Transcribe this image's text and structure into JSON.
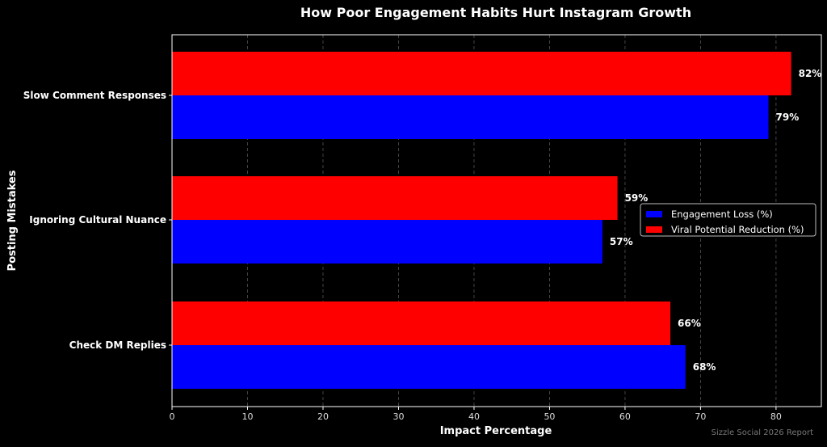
{
  "chart_data": {
    "type": "bar",
    "orientation": "horizontal",
    "title": "How Poor Engagement Habits Hurt Instagram Growth",
    "xlabel": "Impact Percentage",
    "ylabel": "Posting Mistakes",
    "categories": [
      "Slow Comment Responses",
      "Ignoring Cultural Nuance",
      "Check DM Replies"
    ],
    "series": [
      {
        "name": "Engagement Loss (%)",
        "color": "#0000ff",
        "values": [
          79,
          57,
          68
        ]
      },
      {
        "name": "Viral Potential Reduction (%)",
        "color": "#ff0000",
        "values": [
          82,
          59,
          66
        ]
      }
    ],
    "value_suffix": "%",
    "xlim": [
      0,
      86
    ],
    "xticks": [
      0,
      10,
      20,
      30,
      40,
      50,
      60,
      70,
      80
    ],
    "grid": true,
    "legend_position": "right",
    "watermark": "Sizzle Social 2026 Report"
  }
}
